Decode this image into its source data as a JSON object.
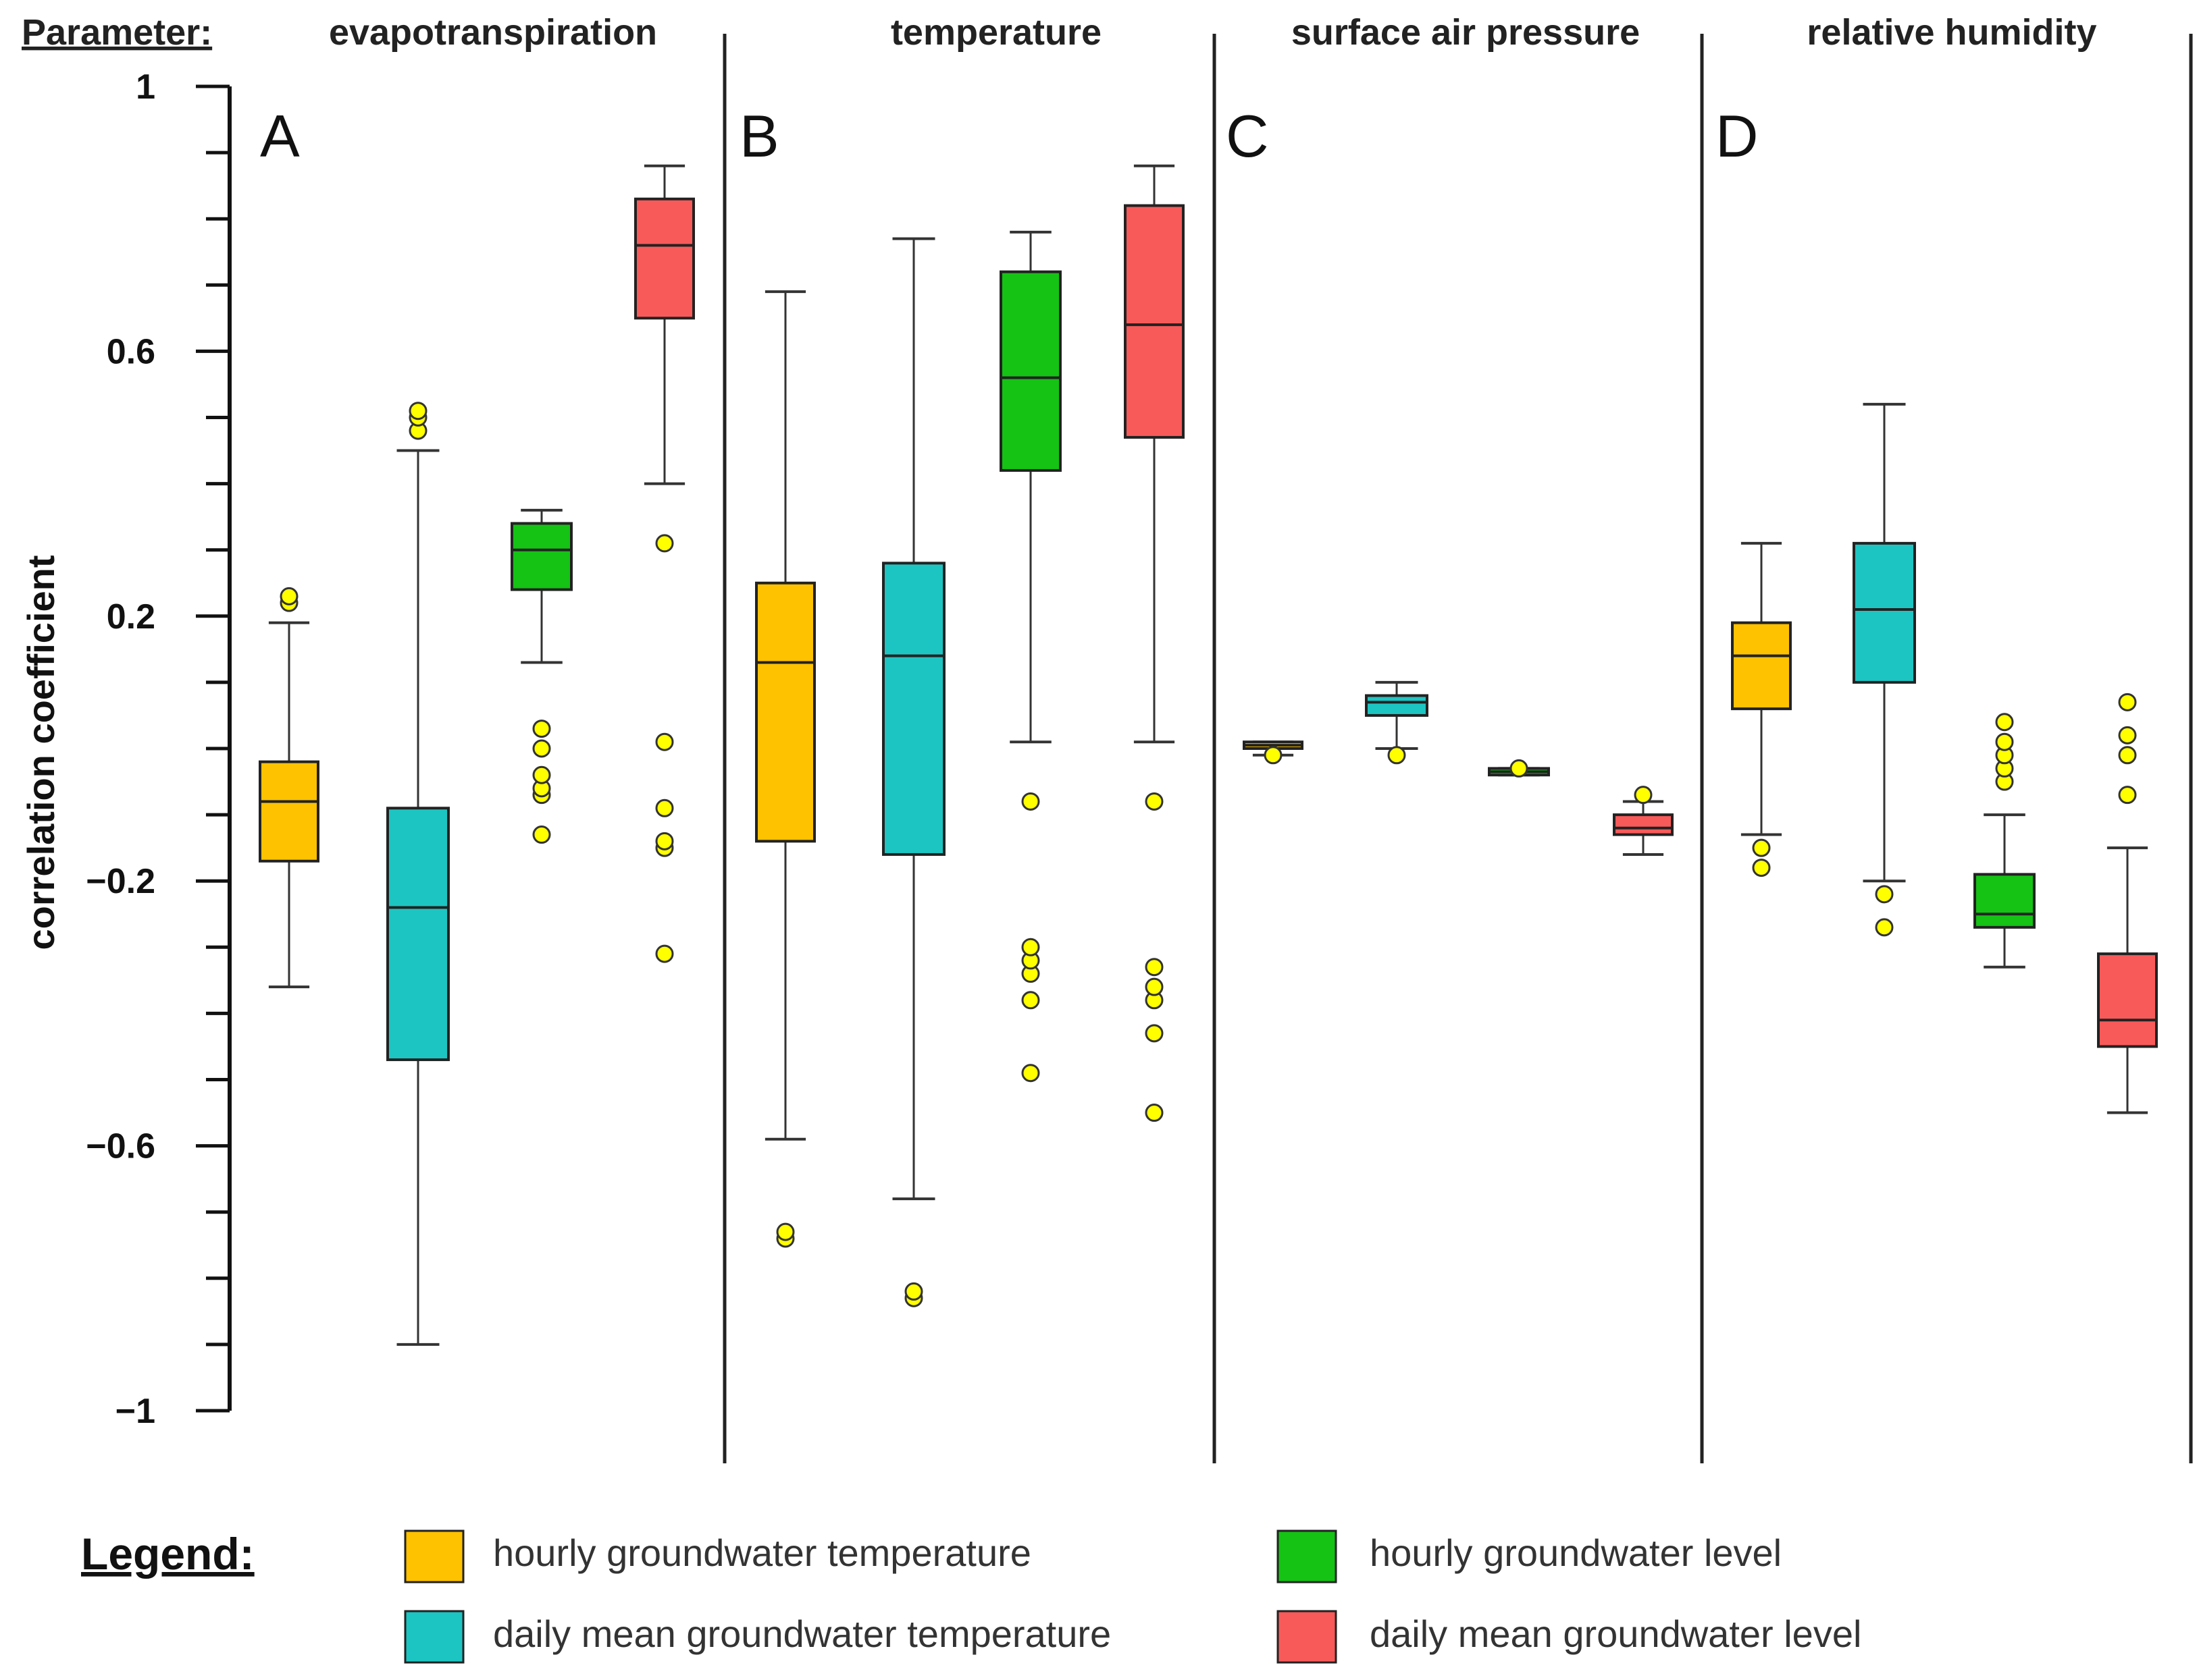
{
  "parameter_label": "Parameter:",
  "legend_title": "Legend:",
  "colors": {
    "hourly_gw_temperature": "#FFC200",
    "daily_mean_gw_temperature": "#1DC5C2",
    "hourly_gw_level": "#14C314",
    "daily_mean_gw_level": "#F85A5A",
    "outlier": "#FFFF00"
  },
  "chart_data": {
    "type": "box",
    "ylabel": "correlation coefficient",
    "ylim": [
      -1,
      1
    ],
    "yticks": [
      1,
      0.6,
      0.2,
      -0.2,
      -0.6,
      -1
    ],
    "ytick_labels": [
      "1",
      "0.6",
      "0.2",
      "−0.2",
      "−0.6",
      "−1"
    ],
    "series": [
      {
        "name": "hourly groundwater temperature",
        "color": "#FFC200"
      },
      {
        "name": "daily mean groundwater temperature",
        "color": "#1DC5C2"
      },
      {
        "name": "hourly groundwater level",
        "color": "#14C314"
      },
      {
        "name": "daily mean groundwater level",
        "color": "#F85A5A"
      }
    ],
    "panels": [
      {
        "letter": "A",
        "parameter": "evapotranspiration",
        "boxes": [
          {
            "whisker_low": -0.36,
            "q1": -0.17,
            "median": -0.08,
            "q3": -0.02,
            "whisker_high": 0.19,
            "outliers": [
              0.22,
              0.23
            ]
          },
          {
            "whisker_low": -0.9,
            "q1": -0.47,
            "median": -0.24,
            "q3": -0.09,
            "whisker_high": 0.45,
            "outliers": [
              0.48,
              0.5,
              0.51
            ]
          },
          {
            "whisker_low": 0.13,
            "q1": 0.24,
            "median": 0.3,
            "q3": 0.34,
            "whisker_high": 0.36,
            "outliers": [
              -0.13,
              -0.07,
              -0.06,
              -0.04,
              0.0,
              0.03
            ]
          },
          {
            "whisker_low": 0.4,
            "q1": 0.65,
            "median": 0.76,
            "q3": 0.83,
            "whisker_high": 0.88,
            "outliers": [
              -0.31,
              -0.15,
              -0.14,
              -0.09,
              0.01,
              0.31
            ]
          }
        ]
      },
      {
        "letter": "B",
        "parameter": "temperature",
        "boxes": [
          {
            "whisker_low": -0.59,
            "q1": -0.14,
            "median": 0.13,
            "q3": 0.25,
            "whisker_high": 0.69,
            "outliers": [
              -0.74,
              -0.73
            ]
          },
          {
            "whisker_low": -0.68,
            "q1": -0.16,
            "median": 0.14,
            "q3": 0.28,
            "whisker_high": 0.77,
            "outliers": [
              -0.83,
              -0.82
            ]
          },
          {
            "whisker_low": 0.01,
            "q1": 0.42,
            "median": 0.56,
            "q3": 0.72,
            "whisker_high": 0.78,
            "outliers": [
              -0.49,
              -0.38,
              -0.34,
              -0.32,
              -0.3,
              -0.08
            ]
          },
          {
            "whisker_low": 0.01,
            "q1": 0.47,
            "median": 0.64,
            "q3": 0.82,
            "whisker_high": 0.88,
            "outliers": [
              -0.55,
              -0.43,
              -0.38,
              -0.36,
              -0.33,
              -0.08
            ]
          }
        ]
      },
      {
        "letter": "C",
        "parameter": "surface air pressure",
        "boxes": [
          {
            "whisker_low": -0.01,
            "q1": 0.0,
            "median": 0.005,
            "q3": 0.01,
            "whisker_high": 0.01,
            "outliers": [
              -0.01
            ]
          },
          {
            "whisker_low": 0.0,
            "q1": 0.05,
            "median": 0.07,
            "q3": 0.08,
            "whisker_high": 0.1,
            "outliers": [
              -0.01
            ]
          },
          {
            "whisker_low": -0.04,
            "q1": -0.04,
            "median": -0.035,
            "q3": -0.03,
            "whisker_high": -0.03,
            "outliers": [
              -0.03
            ]
          },
          {
            "whisker_low": -0.16,
            "q1": -0.13,
            "median": -0.12,
            "q3": -0.1,
            "whisker_high": -0.08,
            "outliers": [
              -0.07
            ]
          }
        ]
      },
      {
        "letter": "D",
        "parameter": "relative humidity",
        "boxes": [
          {
            "whisker_low": -0.13,
            "q1": 0.06,
            "median": 0.14,
            "q3": 0.19,
            "whisker_high": 0.31,
            "outliers": [
              -0.18,
              -0.15
            ]
          },
          {
            "whisker_low": -0.2,
            "q1": 0.1,
            "median": 0.21,
            "q3": 0.31,
            "whisker_high": 0.52,
            "outliers": [
              -0.27,
              -0.22
            ]
          },
          {
            "whisker_low": -0.33,
            "q1": -0.27,
            "median": -0.25,
            "q3": -0.19,
            "whisker_high": -0.1,
            "outliers": [
              -0.05,
              -0.03,
              -0.01,
              0.01,
              0.04
            ]
          },
          {
            "whisker_low": -0.55,
            "q1": -0.45,
            "median": -0.41,
            "q3": -0.31,
            "whisker_high": -0.15,
            "outliers": [
              -0.07,
              -0.01,
              0.02,
              0.07
            ]
          }
        ]
      }
    ]
  }
}
